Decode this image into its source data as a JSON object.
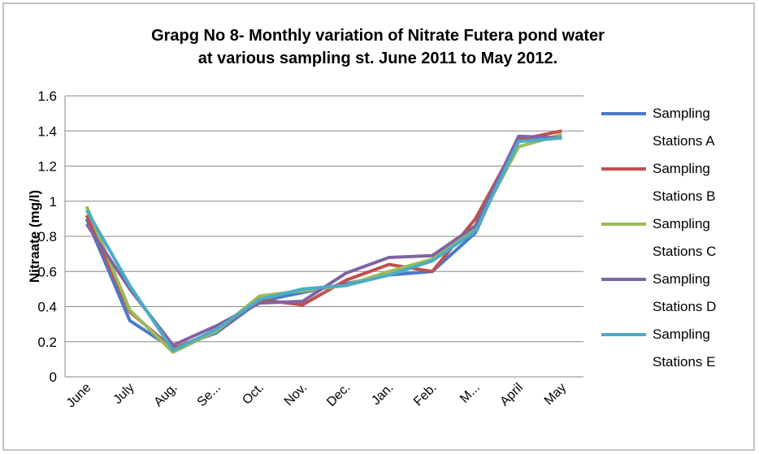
{
  "chart_data": {
    "type": "line",
    "title": [
      "Grapg No 8-  Monthly variation of  Nitrate Futera pond water",
      "at various sampling st. June 2011 to May 2012."
    ],
    "y_label": "Nitraate (mg/l)",
    "categories": [
      "June",
      "July",
      "Aug.",
      "Se...",
      "Oct.",
      "Nov.",
      "Dec.",
      "Jan.",
      "Feb.",
      "M...",
      "April",
      "May"
    ],
    "series": [
      {
        "name": "Sampling Stations A",
        "color": "#4a7bc8",
        "values": [
          0.9,
          0.32,
          0.16,
          0.25,
          0.43,
          0.48,
          0.53,
          0.58,
          0.6,
          0.82,
          1.36,
          1.36
        ]
      },
      {
        "name": "Sampling Stations B",
        "color": "#c0504d",
        "values": [
          0.92,
          0.37,
          0.16,
          0.26,
          0.44,
          0.41,
          0.55,
          0.64,
          0.6,
          0.9,
          1.35,
          1.4
        ]
      },
      {
        "name": "Sampling Stations C",
        "color": "#9bbb59",
        "values": [
          0.97,
          0.38,
          0.14,
          0.26,
          0.46,
          0.49,
          0.52,
          0.6,
          0.67,
          0.85,
          1.31,
          1.38
        ]
      },
      {
        "name": "Sampling Stations D",
        "color": "#8064a2",
        "values": [
          0.87,
          0.5,
          0.18,
          0.29,
          0.42,
          0.43,
          0.59,
          0.68,
          0.69,
          0.86,
          1.37,
          1.36
        ]
      },
      {
        "name": "Sampling Stations E",
        "color": "#4bacc6",
        "values": [
          0.95,
          0.52,
          0.15,
          0.27,
          0.44,
          0.5,
          0.52,
          0.58,
          0.66,
          0.83,
          1.34,
          1.36
        ]
      }
    ],
    "ylim": [
      0,
      1.6
    ],
    "yticks": [
      0,
      0.2,
      0.4,
      0.6,
      0.8,
      1,
      1.2,
      1.4,
      1.6
    ],
    "grid": true,
    "legend": "right"
  }
}
